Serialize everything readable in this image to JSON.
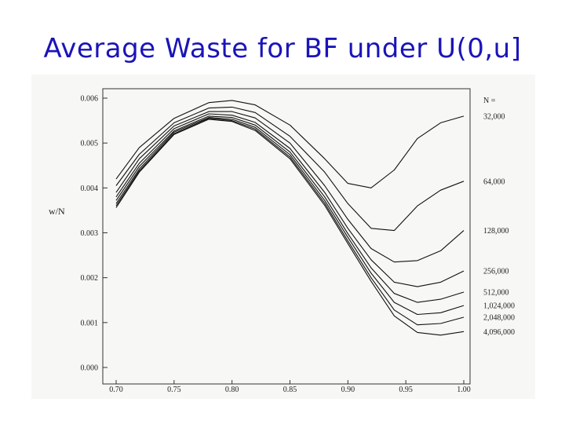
{
  "slide": {
    "title": "Average Waste for BF under U(0,u]"
  },
  "chart_data": {
    "type": "line",
    "title": "",
    "xlabel": "",
    "ylabel": "w/N",
    "xlim": [
      0.7,
      1.0
    ],
    "ylim": [
      0.0,
      0.006
    ],
    "x_ticks": [
      "0.70",
      "0.75",
      "0.80",
      "0.85",
      "0.90",
      "0.95",
      "1.00"
    ],
    "y_ticks": [
      "0.000",
      "0.001",
      "0.002",
      "0.003",
      "0.004",
      "0.005",
      "0.006"
    ],
    "grid": false,
    "legend_header": "N =",
    "legend_position": "right",
    "line_color": "#111111",
    "x": [
      0.7,
      0.72,
      0.75,
      0.78,
      0.8,
      0.82,
      0.85,
      0.88,
      0.9,
      0.92,
      0.94,
      0.96,
      0.98,
      1.0
    ],
    "series": [
      {
        "name": "32,000",
        "values": [
          0.0042,
          0.0049,
          0.00555,
          0.0059,
          0.00595,
          0.00585,
          0.0054,
          0.00465,
          0.0041,
          0.004,
          0.0044,
          0.0051,
          0.00545,
          0.0056
        ]
      },
      {
        "name": "64,000",
        "values": [
          0.00405,
          0.00475,
          0.00545,
          0.00578,
          0.0058,
          0.00568,
          0.00515,
          0.00435,
          0.00365,
          0.0031,
          0.00305,
          0.0036,
          0.00395,
          0.00415
        ]
      },
      {
        "name": "128,000",
        "values": [
          0.0039,
          0.00465,
          0.00538,
          0.0057,
          0.0057,
          0.00556,
          0.005,
          0.00405,
          0.0033,
          0.00265,
          0.00235,
          0.00238,
          0.0026,
          0.00305
        ]
      },
      {
        "name": "256,000",
        "values": [
          0.0038,
          0.00455,
          0.00532,
          0.00565,
          0.00562,
          0.00546,
          0.00488,
          0.0039,
          0.0031,
          0.0024,
          0.0019,
          0.0018,
          0.0019,
          0.00215
        ]
      },
      {
        "name": "512,000",
        "values": [
          0.00372,
          0.00448,
          0.00527,
          0.0056,
          0.00557,
          0.0054,
          0.0048,
          0.0038,
          0.00298,
          0.00222,
          0.00165,
          0.00145,
          0.00152,
          0.00168
        ]
      },
      {
        "name": "1,024,000",
        "values": [
          0.00365,
          0.00442,
          0.00524,
          0.00557,
          0.00553,
          0.00535,
          0.00474,
          0.00372,
          0.0029,
          0.0021,
          0.00145,
          0.00118,
          0.00122,
          0.00138
        ]
      },
      {
        "name": "2,048,000",
        "values": [
          0.0036,
          0.00438,
          0.00521,
          0.00555,
          0.0055,
          0.00531,
          0.00469,
          0.00366,
          0.00282,
          0.002,
          0.00128,
          0.00095,
          0.00098,
          0.00112
        ]
      },
      {
        "name": "4,096,000",
        "values": [
          0.00356,
          0.00435,
          0.00519,
          0.00553,
          0.00548,
          0.00528,
          0.00465,
          0.00361,
          0.00276,
          0.00192,
          0.00115,
          0.00078,
          0.00072,
          0.0008
        ]
      }
    ]
  }
}
